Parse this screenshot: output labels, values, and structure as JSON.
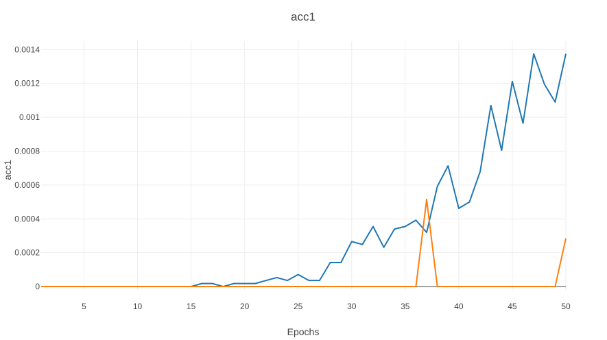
{
  "chart_data": {
    "type": "line",
    "title": "acc1",
    "xlabel": "Epochs",
    "ylabel": "acc1",
    "xlim": [
      1,
      50
    ],
    "ylim": [
      -2e-05,
      0.00145
    ],
    "grid": true,
    "x_ticks": [
      5,
      10,
      15,
      20,
      25,
      30,
      35,
      40,
      45,
      50
    ],
    "y_ticks": [
      0,
      0.0002,
      0.0004,
      0.0006,
      0.0008,
      0.001,
      0.0012,
      0.0014
    ],
    "y_tick_labels": [
      "0",
      "0.0002",
      "0.0004",
      "0.0006",
      "0.0008",
      "0.001",
      "0.0012",
      "0.0014"
    ],
    "x": [
      1,
      2,
      3,
      4,
      5,
      6,
      7,
      8,
      9,
      10,
      11,
      12,
      13,
      14,
      15,
      16,
      17,
      18,
      19,
      20,
      21,
      22,
      23,
      24,
      25,
      26,
      27,
      28,
      29,
      30,
      31,
      32,
      33,
      34,
      35,
      36,
      37,
      38,
      39,
      40,
      41,
      42,
      43,
      44,
      45,
      46,
      47,
      48,
      49,
      50
    ],
    "series": [
      {
        "color": "#1f77b4",
        "values": [
          0,
          0,
          0,
          0,
          0,
          0,
          0,
          0,
          0,
          0,
          0,
          0,
          0,
          0,
          0,
          1.8e-05,
          1.8e-05,
          0,
          1.8e-05,
          1.8e-05,
          1.8e-05,
          3.6e-05,
          5.3e-05,
          3.6e-05,
          7.1e-05,
          3.6e-05,
          3.6e-05,
          0.000142,
          0.000142,
          0.000266,
          0.000249,
          0.000355,
          0.000232,
          0.00034,
          0.000355,
          0.000392,
          0.00032,
          0.000592,
          0.000713,
          0.000462,
          0.0005,
          0.00068,
          0.00107,
          0.000805,
          0.001212,
          0.000965,
          0.001375,
          0.001195,
          0.00109,
          0.001375
        ]
      },
      {
        "color": "#ff7f0e",
        "values": [
          0,
          0,
          0,
          0,
          0,
          0,
          0,
          0,
          0,
          0,
          0,
          0,
          0,
          0,
          0,
          0,
          0,
          0,
          0,
          0,
          0,
          0,
          0,
          0,
          0,
          0,
          0,
          0,
          0,
          0,
          0,
          0,
          0,
          0,
          0,
          0,
          0.000515,
          0,
          0,
          0,
          0,
          0,
          0,
          0,
          0,
          0,
          0,
          0,
          0,
          0.000285
        ]
      }
    ]
  }
}
